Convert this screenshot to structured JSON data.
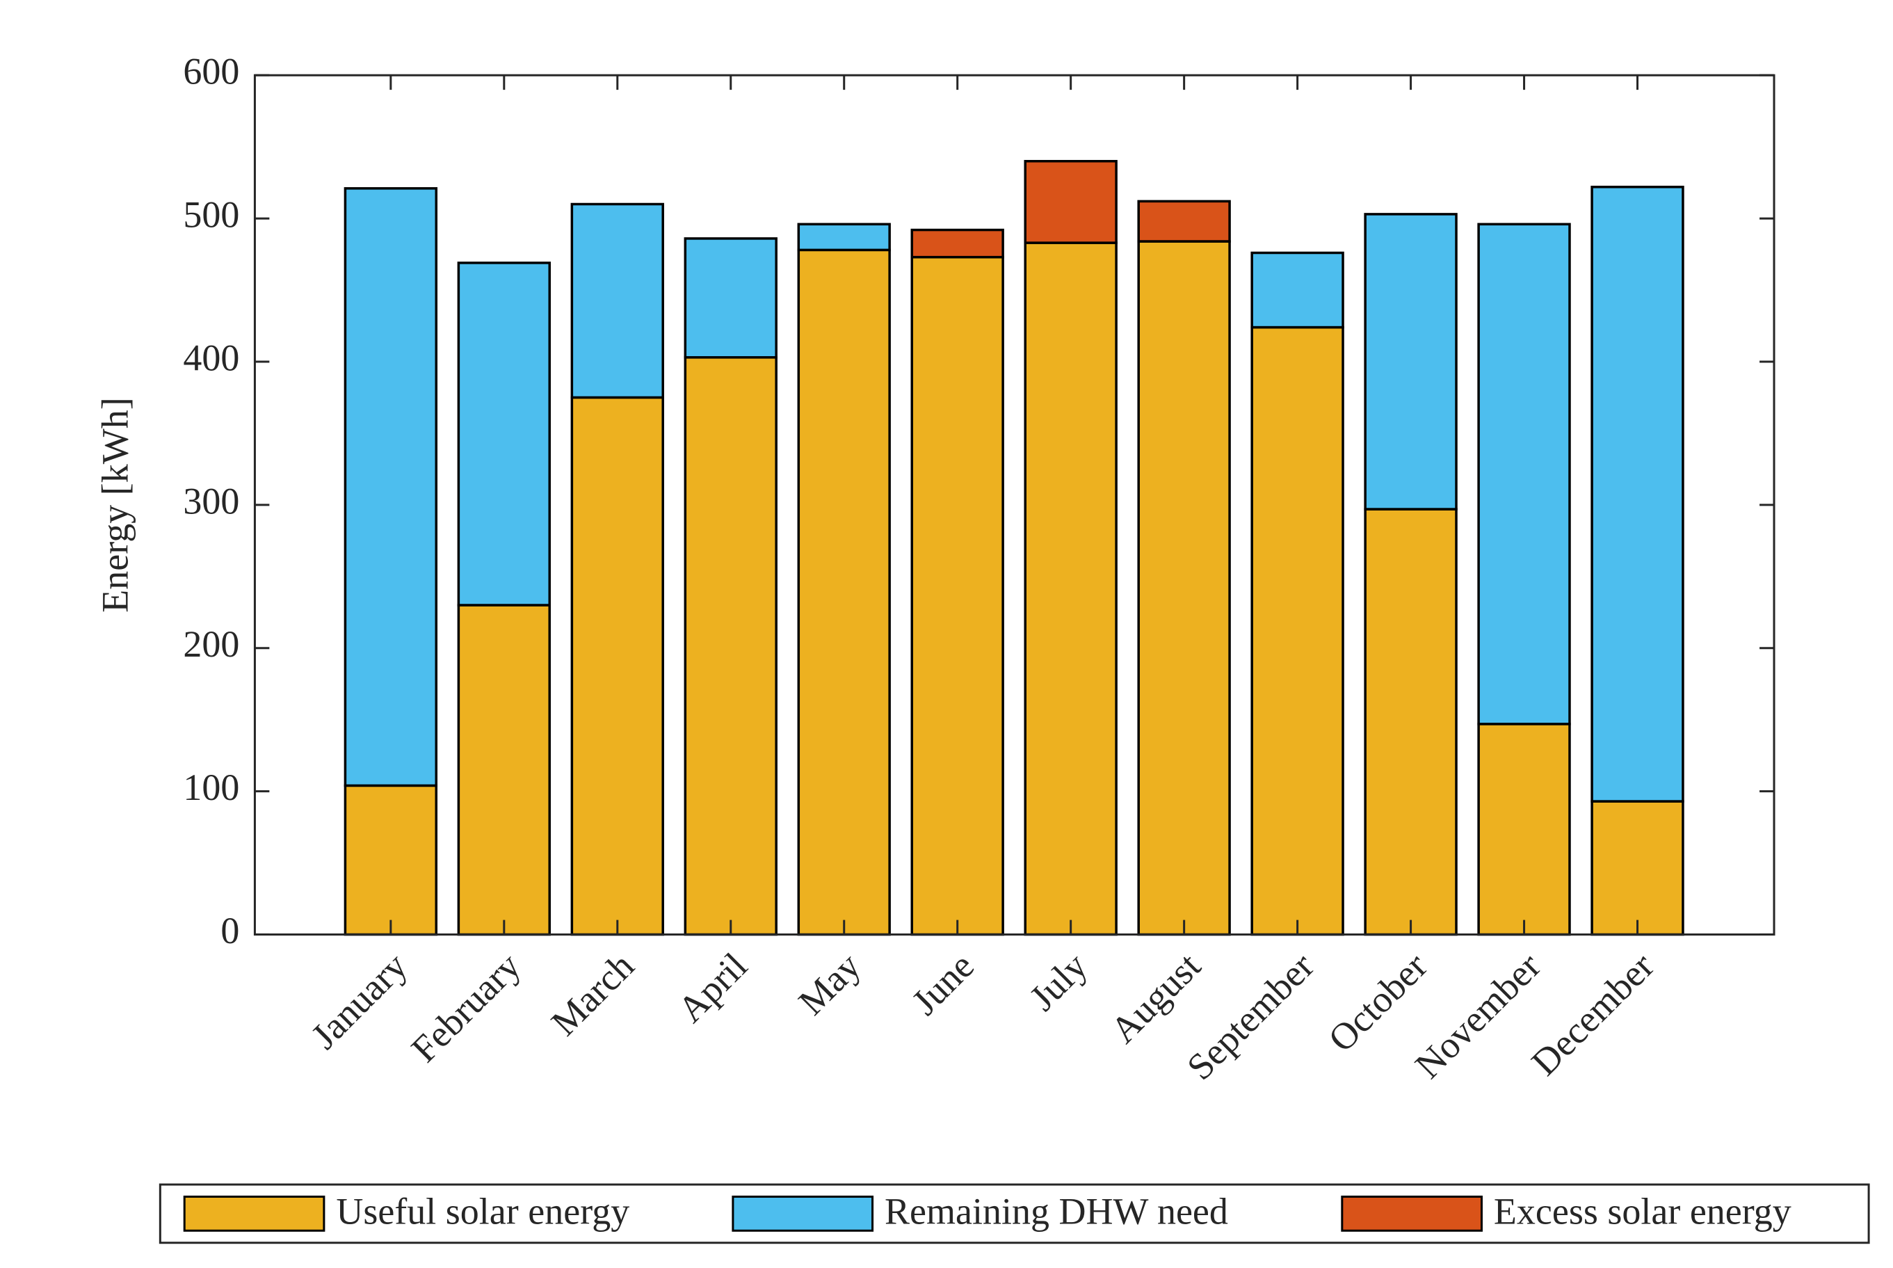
{
  "chart_data": {
    "type": "stacked-bar",
    "categories": [
      "January",
      "February",
      "March",
      "April",
      "May",
      "June",
      "July",
      "August",
      "September",
      "October",
      "November",
      "December"
    ],
    "series": [
      {
        "name": "Useful solar energy",
        "color": "#EDB120",
        "values": [
          104,
          230,
          375,
          403,
          478,
          473,
          483,
          484,
          424,
          297,
          147,
          93
        ]
      },
      {
        "name": "Remaining DHW need",
        "color": "#4DBEEE",
        "values": [
          417,
          239,
          135,
          83,
          18,
          0,
          0,
          0,
          52,
          206,
          349,
          429
        ]
      },
      {
        "name": "Excess solar energy",
        "color": "#D95319",
        "values": [
          0,
          0,
          0,
          0,
          0,
          19,
          57,
          28,
          0,
          0,
          0,
          0
        ]
      }
    ],
    "y_label": "Energy [kWh]",
    "ylim": [
      0,
      600
    ],
    "yticks": [
      0,
      100,
      200,
      300,
      400,
      500,
      600
    ],
    "legend": "bottom"
  }
}
